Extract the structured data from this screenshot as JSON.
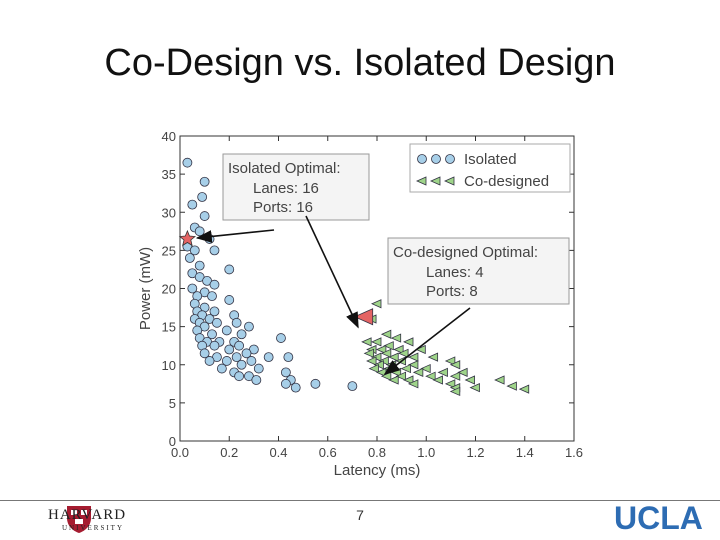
{
  "slide": {
    "title": "Co-Design vs. Isolated Design",
    "page_number": "7"
  },
  "logos": {
    "left": "HARVARD",
    "left_sub": "UNIVERSITY",
    "right": "UCLA"
  },
  "colors": {
    "isolated": "#a7cfe8",
    "codesigned": "#9fd48a",
    "star": "#e46464",
    "ucla": "#2d6cb3"
  },
  "chart_data": {
    "type": "scatter",
    "title": "",
    "xlabel": "Latency (ms)",
    "ylabel": "Power (mW)",
    "xlim": [
      0.0,
      1.6
    ],
    "ylim": [
      0,
      40
    ],
    "xticks": [
      "0.0",
      "0.2",
      "0.4",
      "0.6",
      "0.8",
      "1.0",
      "1.2",
      "1.4",
      "1.6"
    ],
    "yticks": [
      "0",
      "5",
      "10",
      "15",
      "20",
      "25",
      "30",
      "35",
      "40"
    ],
    "grid": false,
    "legend": {
      "position": "top-right",
      "entries": [
        "Isolated",
        "Co-designed"
      ]
    },
    "series": [
      {
        "name": "Isolated",
        "marker": "circle",
        "points": [
          [
            0.03,
            36.5
          ],
          [
            0.1,
            34
          ],
          [
            0.09,
            32
          ],
          [
            0.05,
            31
          ],
          [
            0.1,
            29.5
          ],
          [
            0.06,
            28
          ],
          [
            0.08,
            27.5
          ],
          [
            0.12,
            26.5
          ],
          [
            0.03,
            25.5
          ],
          [
            0.06,
            25
          ],
          [
            0.14,
            25
          ],
          [
            0.04,
            24
          ],
          [
            0.08,
            23
          ],
          [
            0.2,
            22.5
          ],
          [
            0.05,
            22
          ],
          [
            0.08,
            21.5
          ],
          [
            0.11,
            21
          ],
          [
            0.14,
            20.5
          ],
          [
            0.05,
            20
          ],
          [
            0.1,
            19.5
          ],
          [
            0.07,
            19
          ],
          [
            0.13,
            19
          ],
          [
            0.06,
            18
          ],
          [
            0.2,
            18.5
          ],
          [
            0.1,
            17.5
          ],
          [
            0.07,
            17
          ],
          [
            0.14,
            17
          ],
          [
            0.09,
            16.5
          ],
          [
            0.22,
            16.5
          ],
          [
            0.06,
            16
          ],
          [
            0.12,
            16
          ],
          [
            0.08,
            15.5
          ],
          [
            0.15,
            15.5
          ],
          [
            0.23,
            15.5
          ],
          [
            0.1,
            15
          ],
          [
            0.28,
            15
          ],
          [
            0.07,
            14.5
          ],
          [
            0.19,
            14.5
          ],
          [
            0.13,
            14
          ],
          [
            0.25,
            14
          ],
          [
            0.08,
            13.5
          ],
          [
            0.11,
            13
          ],
          [
            0.16,
            13
          ],
          [
            0.22,
            13
          ],
          [
            0.41,
            13.5
          ],
          [
            0.09,
            12.5
          ],
          [
            0.14,
            12.5
          ],
          [
            0.24,
            12.5
          ],
          [
            0.2,
            12
          ],
          [
            0.3,
            12
          ],
          [
            0.1,
            11.5
          ],
          [
            0.27,
            11.5
          ],
          [
            0.15,
            11
          ],
          [
            0.23,
            11
          ],
          [
            0.36,
            11
          ],
          [
            0.44,
            11
          ],
          [
            0.12,
            10.5
          ],
          [
            0.19,
            10.5
          ],
          [
            0.29,
            10.5
          ],
          [
            0.25,
            10
          ],
          [
            0.17,
            9.5
          ],
          [
            0.32,
            9.5
          ],
          [
            0.22,
            9
          ],
          [
            0.43,
            9
          ],
          [
            0.28,
            8.5
          ],
          [
            0.45,
            8
          ],
          [
            0.24,
            8.5
          ],
          [
            0.31,
            8
          ],
          [
            0.55,
            7.5
          ],
          [
            0.43,
            7.5
          ],
          [
            0.7,
            7.2
          ],
          [
            0.47,
            7
          ]
        ]
      },
      {
        "name": "Co-designed",
        "marker": "triangle-left",
        "points": [
          [
            0.8,
            18
          ],
          [
            0.78,
            16
          ],
          [
            0.84,
            14
          ],
          [
            0.88,
            13.5
          ],
          [
            0.76,
            13
          ],
          [
            0.8,
            13
          ],
          [
            0.93,
            13
          ],
          [
            0.85,
            12.5
          ],
          [
            0.78,
            12
          ],
          [
            0.82,
            12
          ],
          [
            0.89,
            12
          ],
          [
            0.98,
            12
          ],
          [
            0.77,
            11.5
          ],
          [
            0.84,
            11.5
          ],
          [
            0.91,
            11.5
          ],
          [
            0.8,
            11
          ],
          [
            0.87,
            11
          ],
          [
            0.95,
            11
          ],
          [
            1.03,
            11
          ],
          [
            0.78,
            10.5
          ],
          [
            0.83,
            10.5
          ],
          [
            0.9,
            10.5
          ],
          [
            1.1,
            10.5
          ],
          [
            0.81,
            10
          ],
          [
            0.86,
            10
          ],
          [
            0.95,
            10
          ],
          [
            1.12,
            10
          ],
          [
            0.79,
            9.5
          ],
          [
            0.85,
            9.5
          ],
          [
            0.92,
            9.5
          ],
          [
            1.0,
            9.5
          ],
          [
            0.82,
            9
          ],
          [
            0.88,
            9
          ],
          [
            0.97,
            9
          ],
          [
            1.07,
            9
          ],
          [
            1.15,
            9
          ],
          [
            0.84,
            8.5
          ],
          [
            0.9,
            8.5
          ],
          [
            1.02,
            8.5
          ],
          [
            1.12,
            8.5
          ],
          [
            0.87,
            8
          ],
          [
            0.93,
            8
          ],
          [
            1.05,
            8
          ],
          [
            1.18,
            8
          ],
          [
            1.3,
            8
          ],
          [
            0.95,
            7.5
          ],
          [
            1.1,
            7.5
          ],
          [
            1.35,
            7.2
          ],
          [
            1.12,
            7
          ],
          [
            1.2,
            7
          ],
          [
            1.4,
            6.8
          ],
          [
            1.12,
            6.5
          ]
        ]
      }
    ],
    "annotations": [
      {
        "lines": [
          "Isolated Optimal:",
          "Lanes: 16",
          "Ports: 16"
        ],
        "point": [
          0.03,
          26.5
        ],
        "box_anchor": "upper-left"
      },
      {
        "lines": [
          "Co-designed Optimal:",
          "Lanes: 4",
          "Ports: 8"
        ],
        "point": [
          0.75,
          16.3
        ],
        "box_anchor": "right"
      }
    ]
  }
}
